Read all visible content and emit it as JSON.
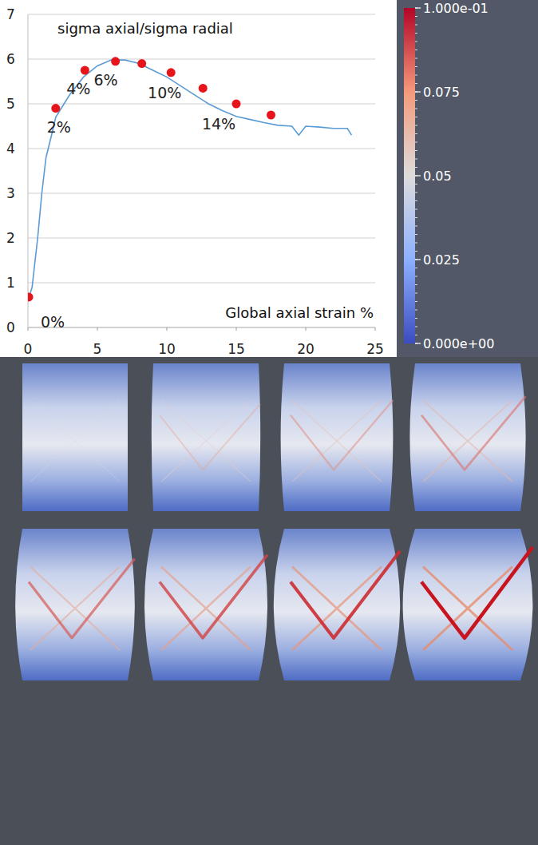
{
  "chart_data": {
    "type": "line",
    "ylabel": "sigma axial/sigma radial",
    "xlabel": "Global axial strain %",
    "xlim": [
      0,
      25
    ],
    "xticks": [
      0,
      5,
      10,
      15,
      20,
      25
    ],
    "ylim": [
      0,
      7
    ],
    "yticks": [
      0,
      1,
      2,
      3,
      4,
      5,
      6,
      7
    ],
    "grid": true,
    "series": [
      {
        "type": "line",
        "color": "#5b9bd5",
        "x": [
          0,
          0.3,
          0.7,
          1,
          1.3,
          1.7,
          2,
          3,
          4,
          5,
          6,
          7,
          8,
          9,
          10,
          11,
          12,
          13,
          14,
          15,
          16,
          17,
          18,
          19,
          19.5,
          20,
          21,
          22,
          23,
          23.3
        ],
        "values": [
          0.6,
          0.9,
          2,
          3,
          3.8,
          4.3,
          4.7,
          5.2,
          5.6,
          5.85,
          5.98,
          5.98,
          5.9,
          5.75,
          5.6,
          5.4,
          5.2,
          5.0,
          4.85,
          4.72,
          4.65,
          4.58,
          4.52,
          4.5,
          4.3,
          4.5,
          4.48,
          4.45,
          4.45,
          4.3
        ]
      },
      {
        "type": "scatter",
        "color": "#e8141c",
        "marker": "circle",
        "x": [
          0.06,
          2,
          4.1,
          6.3,
          8.2,
          10.3,
          12.6,
          15,
          17.5
        ],
        "values": [
          0.68,
          4.9,
          5.75,
          5.95,
          5.9,
          5.7,
          5.35,
          5.0,
          4.75
        ],
        "labels": [
          "0%",
          "2%",
          "4%",
          "6%",
          null,
          "10%",
          null,
          "14%",
          null
        ]
      }
    ],
    "colorbar": {
      "range": [
        0,
        0.1
      ],
      "ticks": [
        {
          "value": 0,
          "label": "0.000e+00"
        },
        0.025,
        0.05,
        0.075,
        {
          "value": 0.1,
          "label": "1.000e-01"
        }
      ]
    }
  }
}
